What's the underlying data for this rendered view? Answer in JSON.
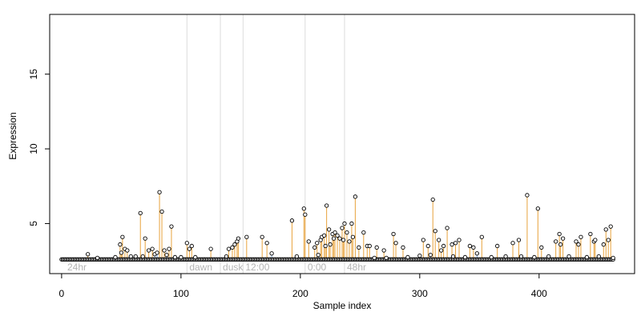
{
  "chart_data": {
    "type": "scatter",
    "title": "",
    "xlabel": "Sample index",
    "ylabel": "Expression",
    "xlim": [
      -10,
      480
    ],
    "ylim": [
      1.65,
      19.0
    ],
    "x_ticks": [
      0,
      100,
      200,
      300,
      400
    ],
    "y_ticks": [
      5,
      10,
      15
    ],
    "grid": false,
    "legend": "none",
    "baseline": 2.6,
    "colors": {
      "spike_line": "#e8a33d",
      "fill_line": "#8ab0e0",
      "point_stroke": "#000000",
      "point_fill": "#ffffff",
      "reference_line": "#dcdcdc",
      "reference_label": "#b4b4b4",
      "frame": "#000000"
    },
    "reference_lines": [
      {
        "x": 105,
        "label": "dawn"
      },
      {
        "x": 133,
        "label": "dusk"
      },
      {
        "x": 152,
        "label": "12:00"
      },
      {
        "x": 204,
        "label": "0:00"
      },
      {
        "x": 237,
        "label": "48hr"
      }
    ],
    "corner_label": "24hr",
    "spikes": [
      {
        "x": 22,
        "y": 2.95
      },
      {
        "x": 49,
        "y": 3.6
      },
      {
        "x": 50,
        "y": 3.05
      },
      {
        "x": 51,
        "y": 4.1
      },
      {
        "x": 53,
        "y": 3.3
      },
      {
        "x": 55,
        "y": 3.2
      },
      {
        "x": 66,
        "y": 5.7
      },
      {
        "x": 70,
        "y": 4.0
      },
      {
        "x": 73,
        "y": 3.2
      },
      {
        "x": 76,
        "y": 3.3
      },
      {
        "x": 82,
        "y": 7.1
      },
      {
        "x": 84,
        "y": 5.8
      },
      {
        "x": 86,
        "y": 3.2
      },
      {
        "x": 90,
        "y": 3.3
      },
      {
        "x": 92,
        "y": 4.8
      },
      {
        "x": 105,
        "y": 3.7
      },
      {
        "x": 107,
        "y": 3.3
      },
      {
        "x": 109,
        "y": 3.5
      },
      {
        "x": 125,
        "y": 3.3
      },
      {
        "x": 140,
        "y": 3.3
      },
      {
        "x": 143,
        "y": 3.4
      },
      {
        "x": 145,
        "y": 3.6
      },
      {
        "x": 147,
        "y": 3.8
      },
      {
        "x": 148,
        "y": 4.0
      },
      {
        "x": 155,
        "y": 4.1
      },
      {
        "x": 168,
        "y": 4.1
      },
      {
        "x": 172,
        "y": 3.7
      },
      {
        "x": 193,
        "y": 5.2
      },
      {
        "x": 203,
        "y": 6.0
      },
      {
        "x": 204,
        "y": 5.6
      },
      {
        "x": 207,
        "y": 3.8
      },
      {
        "x": 212,
        "y": 3.4
      },
      {
        "x": 214,
        "y": 3.7
      },
      {
        "x": 217,
        "y": 3.9
      },
      {
        "x": 218,
        "y": 4.1
      },
      {
        "x": 220,
        "y": 4.2
      },
      {
        "x": 221,
        "y": 3.5
      },
      {
        "x": 222,
        "y": 6.2
      },
      {
        "x": 224,
        "y": 4.6
      },
      {
        "x": 225,
        "y": 3.6
      },
      {
        "x": 227,
        "y": 4.3
      },
      {
        "x": 228,
        "y": 4.0
      },
      {
        "x": 229,
        "y": 4.4
      },
      {
        "x": 231,
        "y": 4.2
      },
      {
        "x": 233,
        "y": 4.0
      },
      {
        "x": 235,
        "y": 4.7
      },
      {
        "x": 236,
        "y": 3.9
      },
      {
        "x": 237,
        "y": 5.0
      },
      {
        "x": 239,
        "y": 4.4
      },
      {
        "x": 241,
        "y": 3.8
      },
      {
        "x": 243,
        "y": 5.0
      },
      {
        "x": 244,
        "y": 4.1
      },
      {
        "x": 246,
        "y": 6.8
      },
      {
        "x": 249,
        "y": 3.4
      },
      {
        "x": 253,
        "y": 4.4
      },
      {
        "x": 256,
        "y": 3.5
      },
      {
        "x": 258,
        "y": 3.5
      },
      {
        "x": 264,
        "y": 3.4
      },
      {
        "x": 270,
        "y": 3.2
      },
      {
        "x": 278,
        "y": 4.3
      },
      {
        "x": 280,
        "y": 3.7
      },
      {
        "x": 286,
        "y": 3.4
      },
      {
        "x": 303,
        "y": 3.9
      },
      {
        "x": 307,
        "y": 3.5
      },
      {
        "x": 311,
        "y": 6.6
      },
      {
        "x": 313,
        "y": 4.5
      },
      {
        "x": 316,
        "y": 3.9
      },
      {
        "x": 318,
        "y": 3.2
      },
      {
        "x": 320,
        "y": 3.5
      },
      {
        "x": 323,
        "y": 4.7
      },
      {
        "x": 327,
        "y": 3.6
      },
      {
        "x": 330,
        "y": 3.7
      },
      {
        "x": 333,
        "y": 3.9
      },
      {
        "x": 342,
        "y": 3.5
      },
      {
        "x": 345,
        "y": 3.4
      },
      {
        "x": 352,
        "y": 4.1
      },
      {
        "x": 365,
        "y": 3.5
      },
      {
        "x": 378,
        "y": 3.7
      },
      {
        "x": 383,
        "y": 3.9
      },
      {
        "x": 390,
        "y": 6.9
      },
      {
        "x": 399,
        "y": 6.0
      },
      {
        "x": 402,
        "y": 3.4
      },
      {
        "x": 414,
        "y": 3.8
      },
      {
        "x": 417,
        "y": 4.3
      },
      {
        "x": 418,
        "y": 3.6
      },
      {
        "x": 420,
        "y": 4.0
      },
      {
        "x": 431,
        "y": 3.8
      },
      {
        "x": 433,
        "y": 3.6
      },
      {
        "x": 435,
        "y": 4.1
      },
      {
        "x": 443,
        "y": 4.3
      },
      {
        "x": 446,
        "y": 3.8
      },
      {
        "x": 447,
        "y": 3.9
      },
      {
        "x": 454,
        "y": 3.6
      },
      {
        "x": 456,
        "y": 4.6
      },
      {
        "x": 458,
        "y": 3.9
      },
      {
        "x": 460,
        "y": 4.8
      }
    ],
    "low_points": [
      {
        "x": 30,
        "y": 2.7
      },
      {
        "x": 45,
        "y": 2.75
      },
      {
        "x": 58,
        "y": 2.8
      },
      {
        "x": 62,
        "y": 2.8
      },
      {
        "x": 68,
        "y": 2.8
      },
      {
        "x": 78,
        "y": 2.95
      },
      {
        "x": 80,
        "y": 3.05
      },
      {
        "x": 88,
        "y": 2.9
      },
      {
        "x": 95,
        "y": 2.75
      },
      {
        "x": 100,
        "y": 2.75
      },
      {
        "x": 112,
        "y": 2.75
      },
      {
        "x": 138,
        "y": 2.8
      },
      {
        "x": 176,
        "y": 3.0
      },
      {
        "x": 197,
        "y": 2.8
      },
      {
        "x": 215,
        "y": 2.9
      },
      {
        "x": 262,
        "y": 2.7
      },
      {
        "x": 272,
        "y": 2.7
      },
      {
        "x": 290,
        "y": 2.75
      },
      {
        "x": 300,
        "y": 2.85
      },
      {
        "x": 309,
        "y": 2.9
      },
      {
        "x": 328,
        "y": 2.8
      },
      {
        "x": 338,
        "y": 2.75
      },
      {
        "x": 348,
        "y": 3.0
      },
      {
        "x": 360,
        "y": 2.75
      },
      {
        "x": 372,
        "y": 2.8
      },
      {
        "x": 385,
        "y": 2.8
      },
      {
        "x": 396,
        "y": 2.75
      },
      {
        "x": 408,
        "y": 2.8
      },
      {
        "x": 425,
        "y": 2.8
      },
      {
        "x": 440,
        "y": 2.75
      },
      {
        "x": 450,
        "y": 2.8
      },
      {
        "x": 462,
        "y": 2.7
      }
    ]
  }
}
